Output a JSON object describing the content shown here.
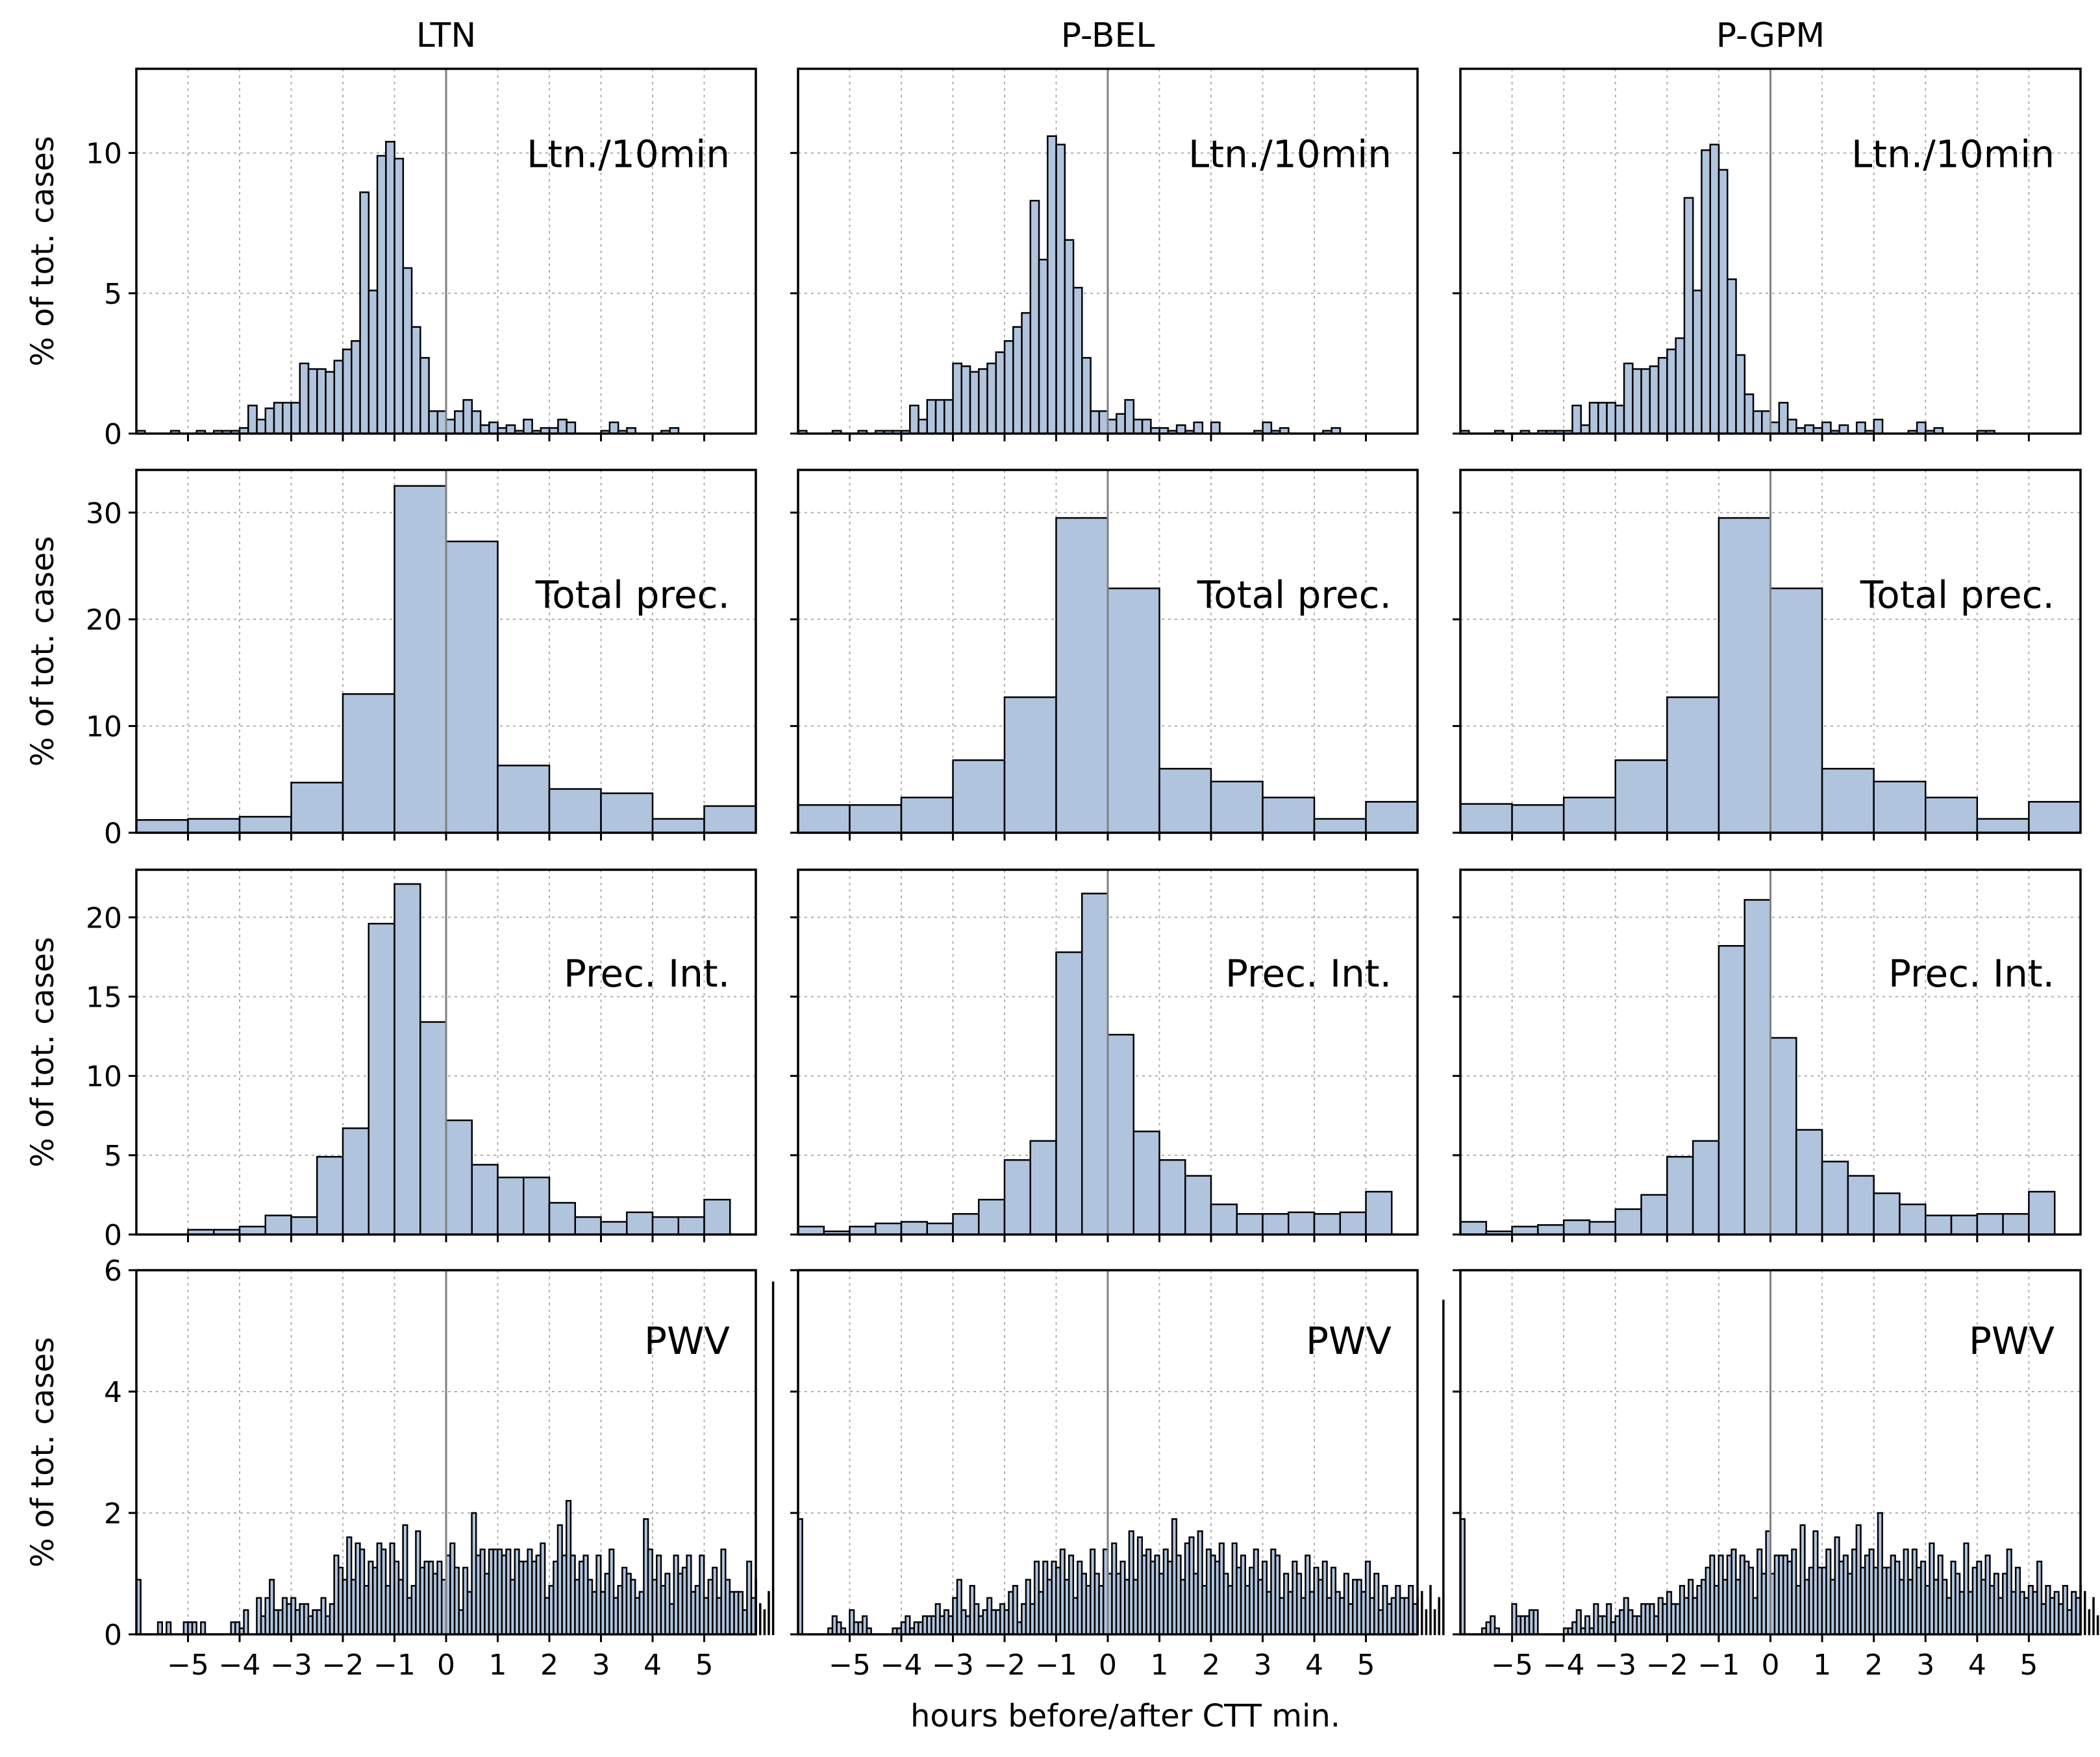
{
  "figure": {
    "xlabel": "hours before/after CTT min.",
    "ylabel": "% of tot. cases",
    "columns": [
      "LTN",
      "P-BEL",
      "P-GPM"
    ],
    "x_ticks": [
      -5,
      -4,
      -3,
      -2,
      -1,
      0,
      1,
      2,
      3,
      4,
      5
    ],
    "x_tick_labels": [
      "−5",
      "−4",
      "−3",
      "−2",
      "−1",
      "0",
      "1",
      "2",
      "3",
      "4",
      "5"
    ],
    "xlim": [
      -6,
      6
    ],
    "colors": {
      "bar_fill": "#b0c4de",
      "bar_edge": "#000000",
      "grid": "#b0b0b0",
      "zero_line": "#808080"
    }
  },
  "chart_data": [
    {
      "type": "bar",
      "row": 0,
      "col": 0,
      "panel_label": "Ltn./10min",
      "bin_start": -6,
      "bin_width": 0.1667,
      "ylim": [
        0,
        13
      ],
      "yticks": [
        0,
        5,
        10
      ],
      "values": [
        0.1,
        0,
        0,
        0,
        0.1,
        0,
        0,
        0.1,
        0,
        0.1,
        0.1,
        0.1,
        0.2,
        1,
        0.5,
        0.9,
        1.1,
        1.1,
        1.1,
        2.5,
        2.3,
        2.3,
        2.2,
        2.6,
        3,
        3.3,
        8.6,
        5.1,
        9.9,
        10.4,
        9.8,
        5.9,
        3.8,
        2.7,
        0.8,
        0.8,
        0.5,
        0.8,
        1.2,
        0.8,
        0.3,
        0.4,
        0.2,
        0.3,
        0.1,
        0.5,
        0.1,
        0.2,
        0.2,
        0.5,
        0.4,
        0,
        0,
        0,
        0.1,
        0.4,
        0.1,
        0.2,
        0,
        0,
        0,
        0.1,
        0.2
      ]
    },
    {
      "type": "bar",
      "row": 0,
      "col": 1,
      "panel_label": "Ltn./10min",
      "bin_start": -6,
      "bin_width": 0.1667,
      "ylim": [
        0,
        13
      ],
      "yticks": [
        0,
        5,
        10
      ],
      "values": [
        0.1,
        0,
        0,
        0,
        0.1,
        0,
        0,
        0.1,
        0,
        0.1,
        0.1,
        0.1,
        0.1,
        1,
        0.5,
        1.2,
        1.2,
        1.2,
        2.5,
        2.4,
        2.2,
        2.3,
        2.5,
        2.9,
        3.3,
        3.8,
        4.3,
        8.3,
        6.2,
        10.6,
        10.3,
        6.9,
        5.2,
        2.7,
        0.8,
        0.8,
        0.5,
        0.7,
        1.2,
        0.5,
        0.5,
        0.2,
        0.2,
        0.1,
        0.3,
        0.1,
        0.4,
        0,
        0.4,
        0,
        0,
        0,
        0,
        0.1,
        0.4,
        0.1,
        0.2,
        0,
        0,
        0,
        0,
        0.1,
        0.2
      ]
    },
    {
      "type": "bar",
      "row": 0,
      "col": 2,
      "panel_label": "Ltn./10min",
      "bin_start": -6,
      "bin_width": 0.1667,
      "ylim": [
        0,
        13
      ],
      "yticks": [
        0,
        5,
        10
      ],
      "values": [
        0.1,
        0,
        0,
        0,
        0.1,
        0,
        0,
        0.1,
        0,
        0.1,
        0.1,
        0.1,
        0.1,
        1,
        0.3,
        1.1,
        1.1,
        1.1,
        1,
        2.5,
        2.3,
        2.3,
        2.4,
        2.7,
        3,
        3.4,
        8.4,
        5.1,
        10.1,
        10.3,
        9.4,
        5.5,
        2.8,
        1.4,
        0.8,
        0.8,
        0.4,
        1.1,
        0.5,
        0.2,
        0.3,
        0.2,
        0.4,
        0.1,
        0.3,
        0,
        0.4,
        0.1,
        0.5,
        0,
        0,
        0,
        0.1,
        0.4,
        0.1,
        0.2,
        0,
        0,
        0,
        0,
        0.1,
        0.1
      ]
    },
    {
      "type": "bar",
      "row": 1,
      "col": 0,
      "panel_label": "Total prec.",
      "bin_start": -6,
      "bin_width": 1,
      "ylim": [
        0,
        34
      ],
      "yticks": [
        0,
        10,
        20,
        30
      ],
      "values": [
        1.2,
        1.3,
        1.5,
        4.7,
        13,
        32.5,
        27.3,
        6.3,
        4.1,
        3.7,
        1.3,
        2.5
      ]
    },
    {
      "type": "bar",
      "row": 1,
      "col": 1,
      "panel_label": "Total prec.",
      "bin_start": -6,
      "bin_width": 1,
      "ylim": [
        0,
        34
      ],
      "yticks": [
        0,
        10,
        20,
        30
      ],
      "values": [
        2.6,
        2.6,
        3.3,
        6.8,
        12.7,
        29.5,
        22.9,
        6,
        4.8,
        3.3,
        1.3,
        2.9
      ]
    },
    {
      "type": "bar",
      "row": 1,
      "col": 2,
      "panel_label": "Total prec.",
      "bin_start": -6,
      "bin_width": 1,
      "ylim": [
        0,
        34
      ],
      "yticks": [
        0,
        10,
        20,
        30
      ],
      "values": [
        2.7,
        2.6,
        3.3,
        6.8,
        12.7,
        29.5,
        22.9,
        6,
        4.8,
        3.3,
        1.3,
        2.9
      ]
    },
    {
      "type": "bar",
      "row": 2,
      "col": 0,
      "panel_label": "Prec. Int.",
      "bin_start": -6,
      "bin_width": 0.5,
      "ylim": [
        0,
        23
      ],
      "yticks": [
        0,
        5,
        10,
        15,
        20
      ],
      "values": [
        0,
        0,
        0.3,
        0.3,
        0.5,
        1.2,
        1.1,
        4.9,
        6.7,
        19.6,
        22.1,
        13.4,
        7.2,
        4.4,
        3.6,
        3.6,
        2,
        1.1,
        0.8,
        1.4,
        1.1,
        1.1,
        2.2
      ]
    },
    {
      "type": "bar",
      "row": 2,
      "col": 1,
      "panel_label": "Prec. Int.",
      "bin_start": -6,
      "bin_width": 0.5,
      "ylim": [
        0,
        23
      ],
      "yticks": [
        0,
        5,
        10,
        15,
        20
      ],
      "values": [
        0.5,
        0.2,
        0.5,
        0.7,
        0.8,
        0.7,
        1.3,
        2.2,
        4.7,
        5.9,
        17.8,
        21.5,
        12.6,
        6.5,
        4.7,
        3.7,
        1.9,
        1.3,
        1.3,
        1.4,
        1.3,
        1.4,
        2.7
      ]
    },
    {
      "type": "bar",
      "row": 2,
      "col": 2,
      "panel_label": "Prec. Int.",
      "bin_start": -6,
      "bin_width": 0.5,
      "ylim": [
        0,
        23
      ],
      "yticks": [
        0,
        5,
        10,
        15,
        20
      ],
      "values": [
        0.8,
        0.2,
        0.5,
        0.6,
        0.9,
        0.8,
        1.6,
        2.5,
        4.9,
        5.9,
        18.2,
        21.1,
        12.4,
        6.6,
        4.6,
        3.7,
        2.6,
        1.9,
        1.2,
        1.2,
        1.3,
        1.3,
        2.7
      ]
    },
    {
      "type": "bar",
      "row": 3,
      "col": 0,
      "panel_label": "PWV",
      "bin_start": -6,
      "bin_width": 0.0833,
      "ylim": [
        0,
        6
      ],
      "yticks": [
        0,
        2,
        4,
        6
      ],
      "values": [
        0.9,
        0,
        0,
        0,
        0,
        0.2,
        0,
        0.2,
        0,
        0,
        0,
        0.2,
        0.2,
        0.2,
        0,
        0.2,
        0,
        0,
        0,
        0,
        0,
        0,
        0.2,
        0.2,
        0.1,
        0.4,
        0,
        0,
        0.6,
        0.3,
        0.6,
        0.9,
        0.4,
        0.4,
        0.6,
        0.5,
        0.6,
        0.4,
        0.5,
        0.5,
        0.3,
        0.4,
        0.4,
        0.6,
        0.3,
        0.5,
        1.3,
        1.1,
        0.9,
        1.6,
        0.9,
        1.5,
        1.4,
        0.8,
        1.2,
        1.1,
        1.5,
        1.4,
        0.8,
        1.5,
        1.2,
        0.9,
        1.8,
        0.6,
        0.8,
        1.7,
        1.1,
        1.2,
        1.2,
        1,
        1.2,
        0.9,
        1.3,
        1.5,
        1.1,
        0.4,
        1.1,
        0.7,
        2,
        1.3,
        1.4,
        1,
        1.4,
        1.4,
        1.4,
        1.3,
        1.4,
        0.9,
        1.4,
        1.2,
        1.2,
        1.4,
        1.2,
        1.3,
        1.5,
        0.6,
        0.8,
        1.2,
        1.8,
        1.3,
        2.2,
        1.3,
        0.9,
        1.2,
        1.3,
        0.9,
        0.7,
        1.3,
        0.7,
        1,
        1.4,
        0.6,
        0.8,
        1.1,
        1,
        0.9,
        0.6,
        0.7,
        1.9,
        1.4,
        0.9,
        1.3,
        0.8,
        1,
        0.5,
        1.3,
        1,
        1.1,
        1.3,
        0.7,
        0.8,
        1.3,
        0.6,
        0.9,
        1.1,
        0.6,
        1.4,
        0.9,
        0.7,
        0.7,
        0.7,
        0.4,
        1.2,
        0.6,
        0.9,
        0.5,
        0.4,
        0.7,
        5.8
      ]
    },
    {
      "type": "bar",
      "row": 3,
      "col": 1,
      "panel_label": "PWV",
      "bin_start": -6,
      "bin_width": 0.0833,
      "ylim": [
        0,
        6
      ],
      "yticks": [
        0,
        2,
        4,
        6
      ],
      "values": [
        1.9,
        0,
        0,
        0,
        0,
        0,
        0,
        0.1,
        0.3,
        0.2,
        0.1,
        0,
        0.4,
        0.2,
        0.2,
        0.3,
        0.1,
        0,
        0,
        0,
        0,
        0,
        0.1,
        0.1,
        0.2,
        0.3,
        0.1,
        0.2,
        0.2,
        0.3,
        0.3,
        0.3,
        0.5,
        0.3,
        0.4,
        0.3,
        0.6,
        0.9,
        0.4,
        0.3,
        0.8,
        0.5,
        0.3,
        0.4,
        0.6,
        0.4,
        0.4,
        0.5,
        0.4,
        0.7,
        0.8,
        0.2,
        0.5,
        0.9,
        0.5,
        1.2,
        0.7,
        1.2,
        0.9,
        1.2,
        1.1,
        1.4,
        0.9,
        1.3,
        0.6,
        1.2,
        1,
        0.8,
        1.4,
        1,
        0.8,
        1.4,
        1,
        1.5,
        1,
        1.2,
        0.9,
        1.7,
        0.9,
        1.6,
        1.3,
        1.4,
        1.2,
        1.3,
        1,
        1.4,
        1.2,
        1.9,
        1.3,
        0.9,
        1.5,
        1.6,
        1,
        1.7,
        0.8,
        1.4,
        1.3,
        1.2,
        1.5,
        1,
        0.8,
        1.5,
        1.1,
        1.3,
        0.8,
        1.1,
        1.4,
        0.9,
        1.2,
        0.7,
        1.4,
        1.3,
        0.6,
        1,
        0.7,
        1.2,
        1,
        0.6,
        1.3,
        0.7,
        1.1,
        0.9,
        1.2,
        0.6,
        1.1,
        0.7,
        0.6,
        1,
        0.5,
        0.9,
        0.9,
        0.7,
        1.2,
        0.6,
        1,
        0.4,
        0.8,
        0.5,
        0.6,
        0.8,
        0.6,
        0.6,
        0.8,
        0.5,
        0.6,
        0.7,
        0.4,
        0.8,
        0.4,
        0.6,
        5.5
      ]
    },
    {
      "type": "bar",
      "row": 3,
      "col": 2,
      "panel_label": "PWV",
      "bin_start": -6,
      "bin_width": 0.0833,
      "ylim": [
        0,
        6
      ],
      "yticks": [
        0,
        2,
        4,
        6
      ],
      "values": [
        1.9,
        0,
        0,
        0,
        0,
        0.1,
        0.2,
        0.3,
        0.1,
        0,
        0,
        0,
        0.5,
        0.3,
        0.3,
        0.3,
        0.4,
        0.4,
        0,
        0,
        0,
        0,
        0,
        0,
        0.1,
        0.1,
        0.2,
        0.4,
        0.1,
        0.3,
        0.1,
        0.5,
        0.3,
        0.3,
        0.5,
        0.2,
        0.3,
        0.4,
        0.6,
        0.4,
        0.3,
        0.3,
        0.5,
        0.5,
        0.5,
        0.3,
        0.6,
        0.5,
        0.7,
        0.5,
        0.5,
        0.8,
        0.6,
        0.9,
        0.6,
        0.8,
        0.9,
        1.1,
        1.3,
        0.8,
        1.3,
        0.9,
        1.3,
        1.4,
        0.9,
        1.3,
        1.2,
        1.1,
        0.6,
        1.4,
        1,
        1.7,
        1,
        1.3,
        1.3,
        1.3,
        1.2,
        1.4,
        0.8,
        1.8,
        0.9,
        1.1,
        1.7,
        1.1,
        1.1,
        1.4,
        0.9,
        1.6,
        1.2,
        1.3,
        1,
        1.4,
        1.8,
        1.1,
        1.3,
        1.4,
        1.1,
        2,
        1.1,
        1.1,
        1.3,
        1.2,
        0.9,
        1.4,
        0.9,
        1.4,
        1.1,
        1.2,
        0.8,
        1.5,
        0.9,
        1.3,
        0.9,
        0.6,
        1.2,
        1,
        0.7,
        1.5,
        0.7,
        1.1,
        1.2,
        0.9,
        1.3,
        0.8,
        1,
        0.6,
        1,
        1.4,
        0.7,
        1.1,
        0.7,
        0.6,
        0.8,
        0.7,
        1.2,
        0.5,
        0.8,
        0.6,
        0.7,
        0.5,
        0.8,
        0.4,
        0.7,
        0.6,
        0.8,
        0.7,
        0.4,
        0.6,
        0.3,
        5.6
      ]
    }
  ]
}
